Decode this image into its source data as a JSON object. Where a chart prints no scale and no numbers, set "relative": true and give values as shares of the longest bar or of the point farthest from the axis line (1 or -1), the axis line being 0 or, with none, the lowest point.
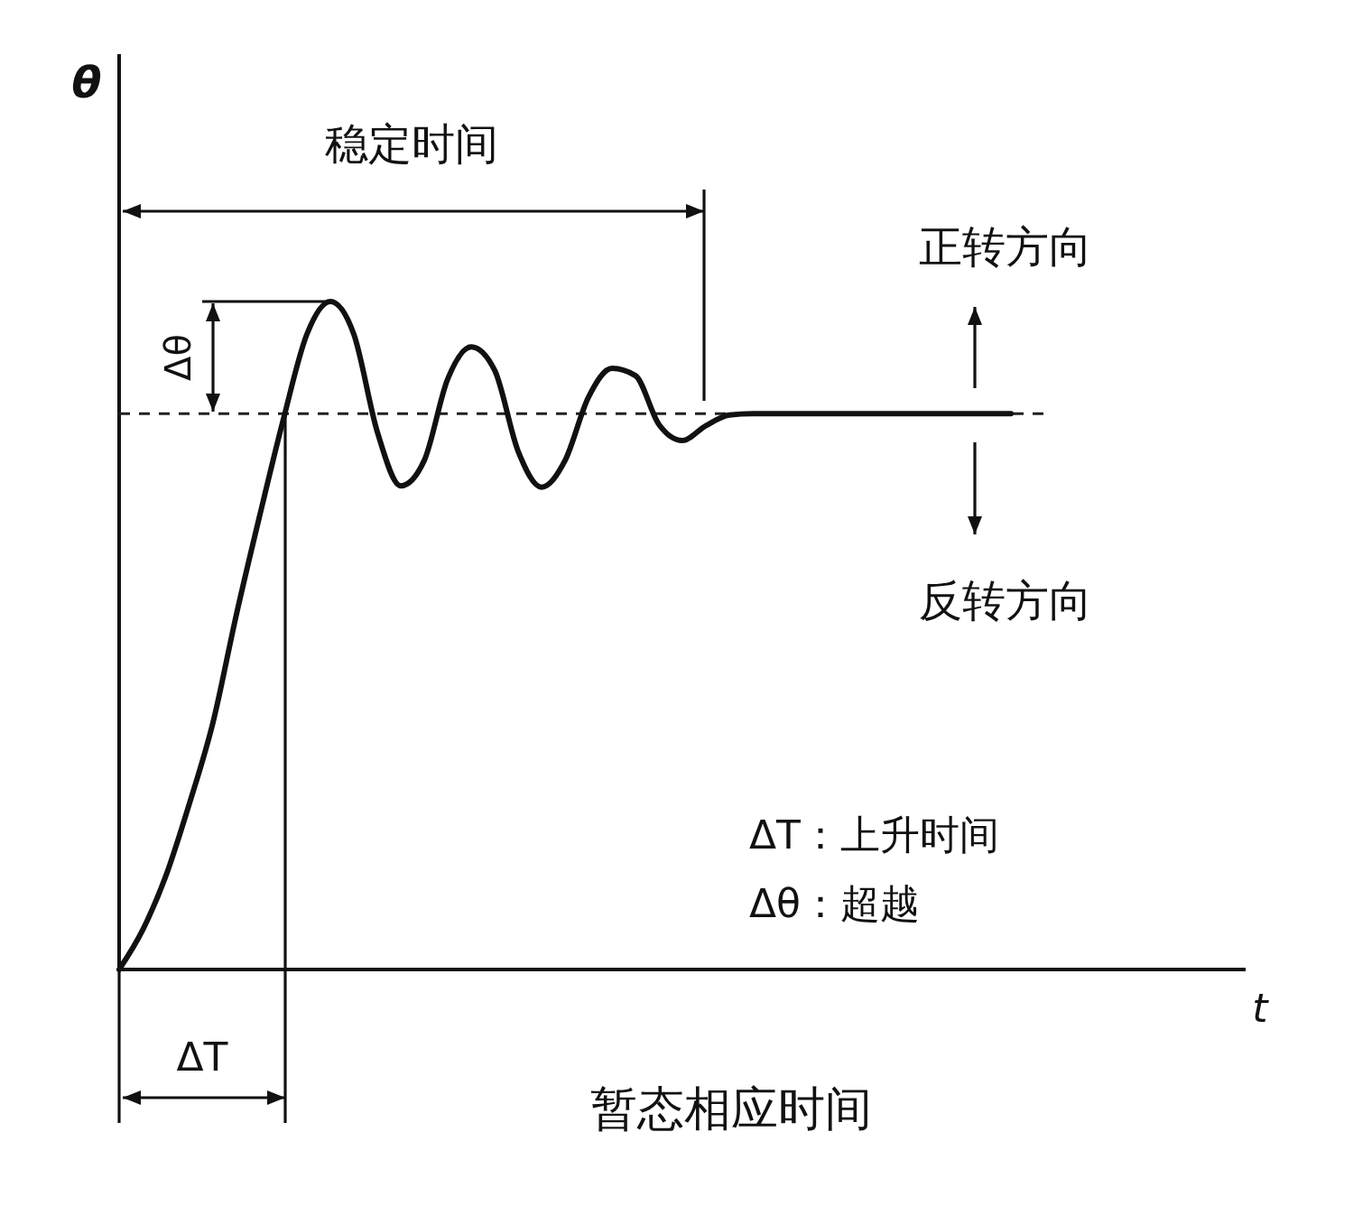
{
  "chart_data": {
    "type": "line",
    "relative": true,
    "xlabel": "t",
    "ylabel": "θ",
    "categories": [
      null,
      null,
      null,
      null,
      null,
      null,
      null,
      null,
      null,
      null,
      null,
      null,
      null,
      null,
      null,
      null,
      null,
      null,
      null,
      null,
      null,
      null,
      null,
      null,
      null,
      null,
      null,
      null,
      null,
      null,
      null,
      null,
      null,
      null,
      null,
      null,
      null,
      null,
      null,
      null,
      null,
      null,
      null,
      null,
      null,
      null,
      null,
      null,
      null
    ],
    "series": [
      {
        "color": "#111111",
        "values": [
          0,
          0.059,
          0.141,
          0.249,
          0.37,
          0.532,
          0.681,
          0.824,
          0.951,
          1,
          0.951,
          0.805,
          0.724,
          0.762,
          0.884,
          0.932,
          0.897,
          0.776,
          0.722,
          0.762,
          0.857,
          0.9,
          0.889,
          0.816,
          0.792,
          0.814,
          0.83,
          0.832,
          0.832,
          0.832,
          0.832,
          0.832,
          0.832,
          0.832,
          0.832,
          0.832,
          0.832,
          0.832,
          0.832,
          null,
          null,
          null,
          null,
          null,
          null,
          null,
          null,
          null,
          null
        ]
      }
    ],
    "ref_lines": [
      {
        "axis": "y",
        "value": 0.832,
        "line_style": "dashed",
        "color": "#222222"
      }
    ],
    "annotations": [
      "稳定时间",
      "正转方向",
      "反转方向",
      "ΔT：上升时间",
      "Δθ：超越",
      "ΔT",
      "Δθ",
      "暂态相应时间"
    ],
    "marker": "none",
    "line_style": "solid"
  }
}
